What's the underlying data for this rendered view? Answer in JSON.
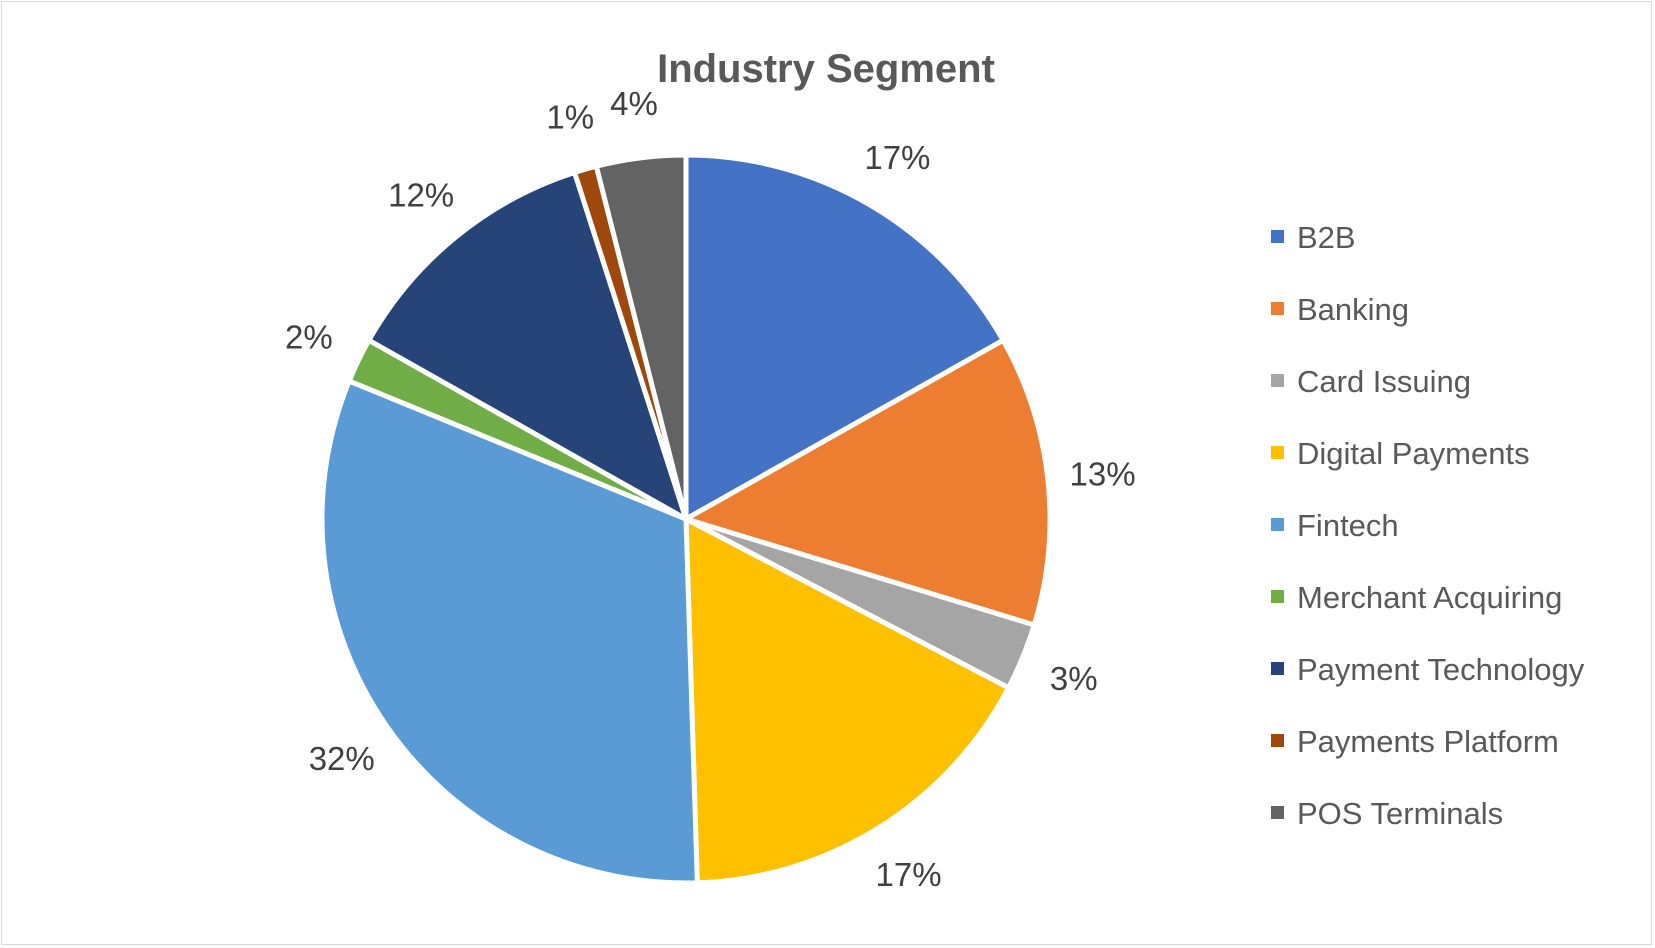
{
  "chart_data": {
    "type": "pie",
    "title": "Industry Segment",
    "categories": [
      "B2B",
      "Banking",
      "Card Issuing",
      "Digital Payments",
      "Fintech",
      "Merchant Acquiring",
      "Payment Technology",
      "Payments Platform",
      "POS Terminals"
    ],
    "values": [
      17,
      13,
      3,
      17,
      32,
      2,
      12,
      1,
      4
    ],
    "labels": [
      "17%",
      "13%",
      "3%",
      "17%",
      "32%",
      "2%",
      "12%",
      "1%",
      "4%"
    ],
    "colors": [
      "#4472C4",
      "#ED7D31",
      "#A5A5A5",
      "#FFC000",
      "#5B9BD5",
      "#70AD47",
      "#264478",
      "#9E480E",
      "#636363"
    ],
    "legend_position": "right"
  }
}
